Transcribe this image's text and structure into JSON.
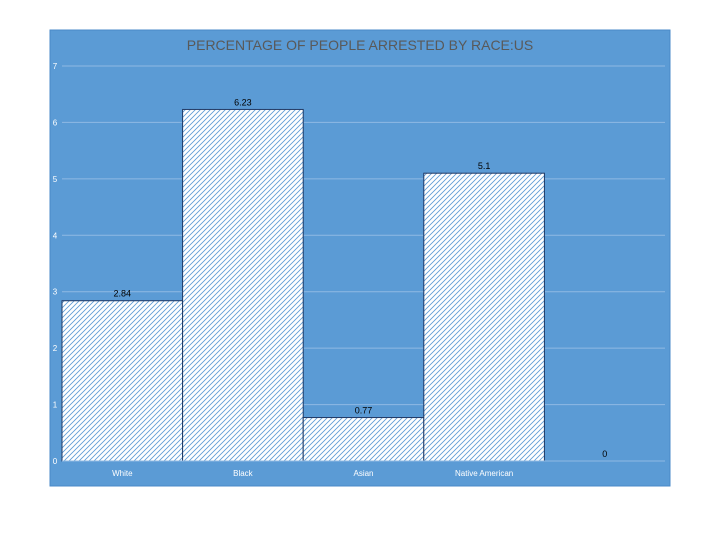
{
  "chart_data": {
    "type": "bar",
    "title": "PERCENTAGE OF PEOPLE ARRESTED BY RACE:US",
    "xlabel": "",
    "ylabel": "",
    "categories": [
      "White",
      "Black",
      "Asian",
      "Native American",
      ""
    ],
    "values": [
      2.84,
      6.23,
      0.77,
      5.1,
      0
    ],
    "data_labels": [
      "2.84",
      "6.23",
      "0.77",
      "5.1",
      "0"
    ],
    "ylim": [
      0,
      7
    ],
    "yticks": [
      0,
      1,
      2,
      3,
      4,
      5,
      6,
      7
    ],
    "grid": true,
    "legend": "none",
    "colors": {
      "plot_background": "#5b9bd5",
      "frame_border": "#4a8ac8",
      "gridline": "#8fb9e3",
      "bar_fill": "#ffffff",
      "bar_hatch": "#5b9bd5",
      "bar_outline": "#1f3864",
      "title_text": "#595959",
      "label_text": "#000000",
      "axis_text": "#ffffff"
    }
  }
}
